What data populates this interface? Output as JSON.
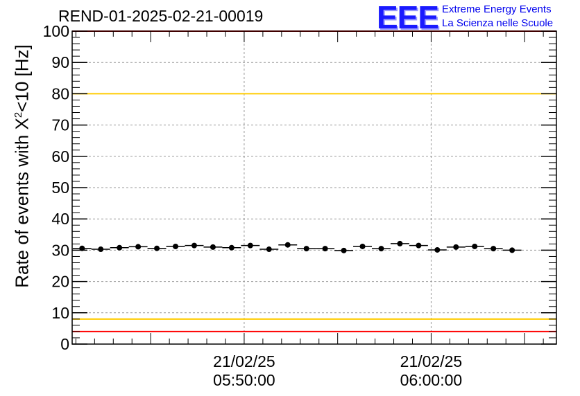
{
  "title": "REND-01-2025-02-21-00019",
  "logo": {
    "mark": "EEE",
    "line1": "Extreme Energy Events",
    "line2": "La Scienza nelle Scuole"
  },
  "chart_data": {
    "type": "scatter",
    "title": "REND-01-2025-02-21-00019",
    "ylabel_parts": [
      "Rate of events with X",
      "2",
      "<10 [Hz]"
    ],
    "ylim": [
      0,
      100
    ],
    "yticks": [
      0,
      10,
      20,
      30,
      40,
      50,
      60,
      70,
      80,
      90,
      100
    ],
    "xlim_minutes": [
      5.8,
      31.7
    ],
    "xticks": [
      {
        "x": 15,
        "line1": "21/02/25",
        "line2": "05:50:00"
      },
      {
        "x": 25,
        "line1": "21/02/25",
        "line2": "06:00:00"
      }
    ],
    "grid": true,
    "x_unit": "minutes after 05:40:00 on 21/02/25",
    "thresholds": [
      {
        "y": 100,
        "color": "#ff0000"
      },
      {
        "y": 80,
        "color": "#ffcc00"
      },
      {
        "y": 8,
        "color": "#ffcc00"
      },
      {
        "y": 4,
        "color": "#ff0000"
      }
    ],
    "series": [
      {
        "x": [
          6.33,
          7.33,
          8.33,
          9.33,
          10.33,
          11.33,
          12.33,
          13.33,
          14.33,
          15.33,
          16.33,
          17.33,
          18.33,
          19.33,
          20.33,
          21.33,
          22.33,
          23.33,
          24.33,
          25.33,
          26.33,
          27.33,
          28.33,
          29.33
        ],
        "y": [
          30.6,
          30.3,
          30.8,
          31.1,
          30.6,
          31.2,
          31.5,
          31.0,
          30.8,
          31.5,
          30.3,
          31.7,
          30.5,
          30.5,
          29.9,
          31.2,
          30.5,
          32.1,
          31.5,
          30.1,
          31.0,
          31.2,
          30.5,
          30.0
        ],
        "xerr": 0.5,
        "color": "#000000"
      }
    ]
  }
}
